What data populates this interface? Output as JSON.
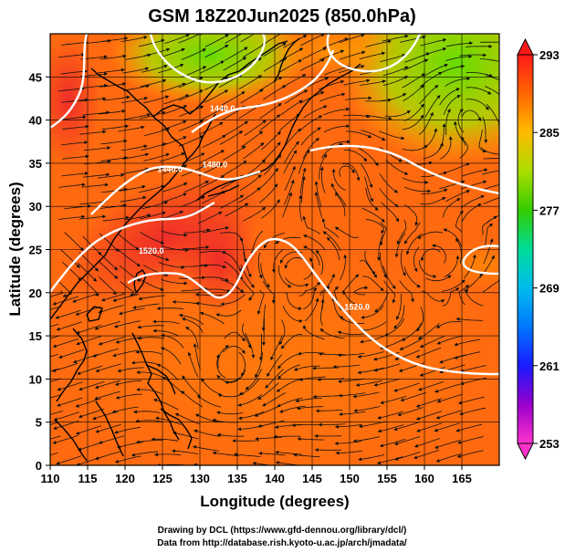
{
  "title": "GSM 18Z20Jun2025 (850.0hPa)",
  "x_axis": {
    "label": "Longitude (degrees)",
    "range": [
      110,
      170
    ],
    "ticks": [
      110,
      115,
      120,
      125,
      130,
      135,
      140,
      145,
      150,
      155,
      160,
      165
    ]
  },
  "y_axis": {
    "label": "Latitude  (degrees)",
    "range": [
      0,
      50
    ],
    "ticks": [
      0,
      5,
      10,
      15,
      20,
      25,
      30,
      35,
      40,
      45
    ]
  },
  "colorbar": {
    "range": [
      253,
      293
    ],
    "ticks": [
      253,
      261,
      269,
      277,
      285,
      293
    ],
    "colors": {
      "c253": "#ff33cc",
      "c257": "#9900cc",
      "c261": "#1a1aff",
      "c265": "#0077ff",
      "c269": "#00bbee",
      "c273": "#00dd99",
      "c277": "#33cc00",
      "c281": "#aadd00",
      "c285": "#ffbb00",
      "c289": "#ff6600",
      "c293": "#ff1a1a"
    }
  },
  "contours": [
    {
      "label": "1440.0",
      "lon": 133,
      "lat": 41
    },
    {
      "label": "1440.0",
      "lon": 126,
      "lat": 34
    },
    {
      "label": "1480.0",
      "lon": 132,
      "lat": 34.5
    },
    {
      "label": "1520.0",
      "lon": 123.5,
      "lat": 24.5
    },
    {
      "label": "1520.0",
      "lon": 151,
      "lat": 18
    }
  ],
  "credits": [
    "Drawing by DCL (https://www.gfd-dennou.org/library/dcl/)",
    "Data from http://database.rish.kyoto-u.ac.jp/arch/jmadata/"
  ]
}
